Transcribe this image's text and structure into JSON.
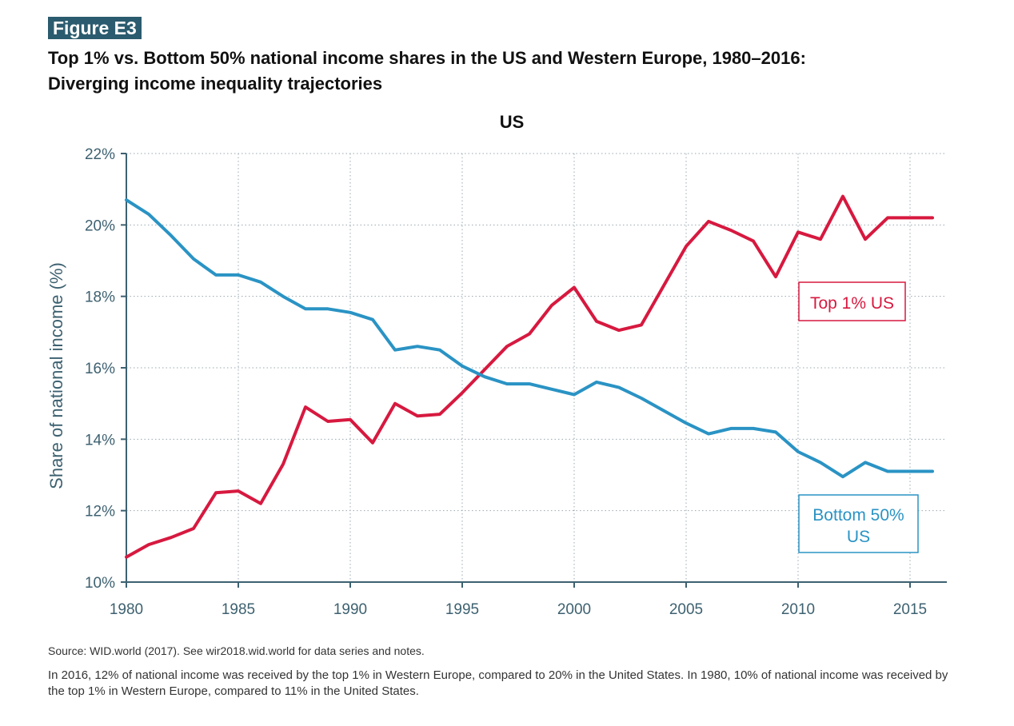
{
  "figure": {
    "label": "Figure E3",
    "title_line1": "Top 1% vs. Bottom 50% national income shares in the US and Western Europe, 1980–2016:",
    "title_line2": "Diverging income inequality trajectories"
  },
  "chart_data": {
    "type": "line",
    "title": "US",
    "xlabel": "",
    "ylabel": "Share of national income (%)",
    "xlim": [
      1980,
      2016
    ],
    "ylim": [
      10,
      22
    ],
    "x_ticks": [
      1980,
      1985,
      1990,
      1995,
      2000,
      2005,
      2010,
      2015
    ],
    "y_ticks": [
      10,
      12,
      14,
      16,
      18,
      20,
      22
    ],
    "y_tick_labels": [
      "10%",
      "12%",
      "14%",
      "16%",
      "18%",
      "20%",
      "22%"
    ],
    "grid": true,
    "x": [
      1980,
      1981,
      1982,
      1983,
      1984,
      1985,
      1986,
      1987,
      1988,
      1989,
      1990,
      1991,
      1992,
      1993,
      1994,
      1995,
      1996,
      1997,
      1998,
      1999,
      2000,
      2001,
      2002,
      2003,
      2004,
      2005,
      2006,
      2007,
      2008,
      2009,
      2010,
      2011,
      2012,
      2013,
      2014,
      2015,
      2016
    ],
    "series": [
      {
        "name": "Top 1% US",
        "color": "#d7193f",
        "values": [
          10.7,
          11.05,
          11.25,
          11.5,
          12.5,
          12.55,
          12.2,
          13.3,
          14.9,
          14.5,
          14.55,
          13.9,
          15.0,
          14.65,
          14.7,
          15.3,
          15.95,
          16.6,
          16.95,
          17.75,
          18.25,
          17.3,
          17.05,
          17.2,
          18.3,
          19.4,
          20.1,
          19.85,
          19.55,
          18.55,
          19.8,
          19.6,
          20.8,
          19.6,
          20.2,
          20.2,
          20.2
        ]
      },
      {
        "name": "Bottom 50% US",
        "color": "#2a93c4",
        "values": [
          20.7,
          20.3,
          19.7,
          19.05,
          18.6,
          18.6,
          18.4,
          18.0,
          17.65,
          17.65,
          17.55,
          17.35,
          16.5,
          16.6,
          16.5,
          16.05,
          15.75,
          15.55,
          15.55,
          15.4,
          15.25,
          15.6,
          15.45,
          15.15,
          14.8,
          14.45,
          14.15,
          14.3,
          14.3,
          14.2,
          13.65,
          13.35,
          12.95,
          13.35,
          13.1,
          13.1,
          13.1
        ]
      }
    ],
    "annotations": [
      {
        "text": "Top 1% US",
        "series": "Top 1% US"
      },
      {
        "text_line1": "Bottom 50%",
        "text_line2": "US",
        "series": "Bottom 50% US"
      }
    ]
  },
  "footer": {
    "source": "Source:  WID.world (2017). See wir2018.wid.world for data series and notes.",
    "note": "In 2016, 12% of national income was received by the top 1% in Western Europe, compared to 20% in the United States. In 1980, 10% of national income was received by the top 1% in Western Europe, compared to 11% in the United States."
  },
  "colors": {
    "axis": "#3d6170",
    "grid": "#9aa8b0",
    "label_box": "#2b5b6e"
  }
}
